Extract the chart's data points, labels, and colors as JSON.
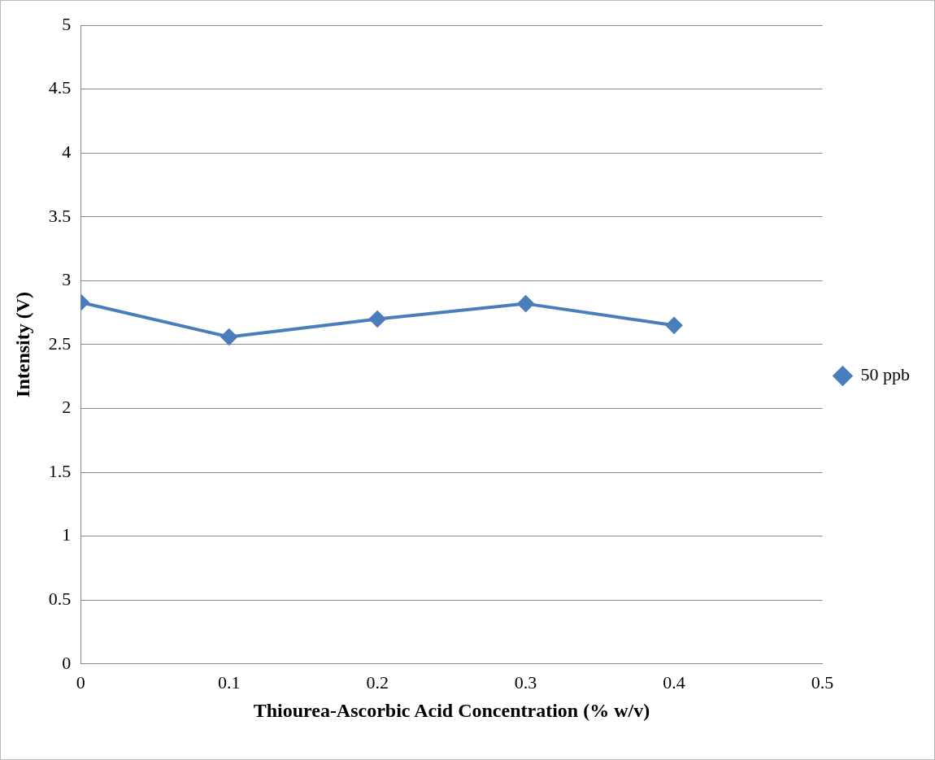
{
  "chart_data": {
    "type": "line",
    "xlabel": "Thiourea-Ascorbic Acid Concentration (% w/v)",
    "ylabel": "Intensity (V)",
    "x": [
      0,
      0.1,
      0.2,
      0.3,
      0.4
    ],
    "series": [
      {
        "name": "50 ppb",
        "color": "#4a7ebb",
        "values": [
          2.83,
          2.56,
          2.7,
          2.82,
          2.65
        ]
      }
    ],
    "xlim": [
      0,
      0.5
    ],
    "xticks": [
      0,
      0.1,
      0.2,
      0.3,
      0.4,
      0.5
    ],
    "ylim": [
      0,
      5
    ],
    "yticks": [
      0,
      0.5,
      1,
      1.5,
      2,
      2.5,
      3,
      3.5,
      4,
      4.5,
      5
    ],
    "grid": "y",
    "legend": "right",
    "marker": "diamond",
    "line_style": "solid"
  }
}
